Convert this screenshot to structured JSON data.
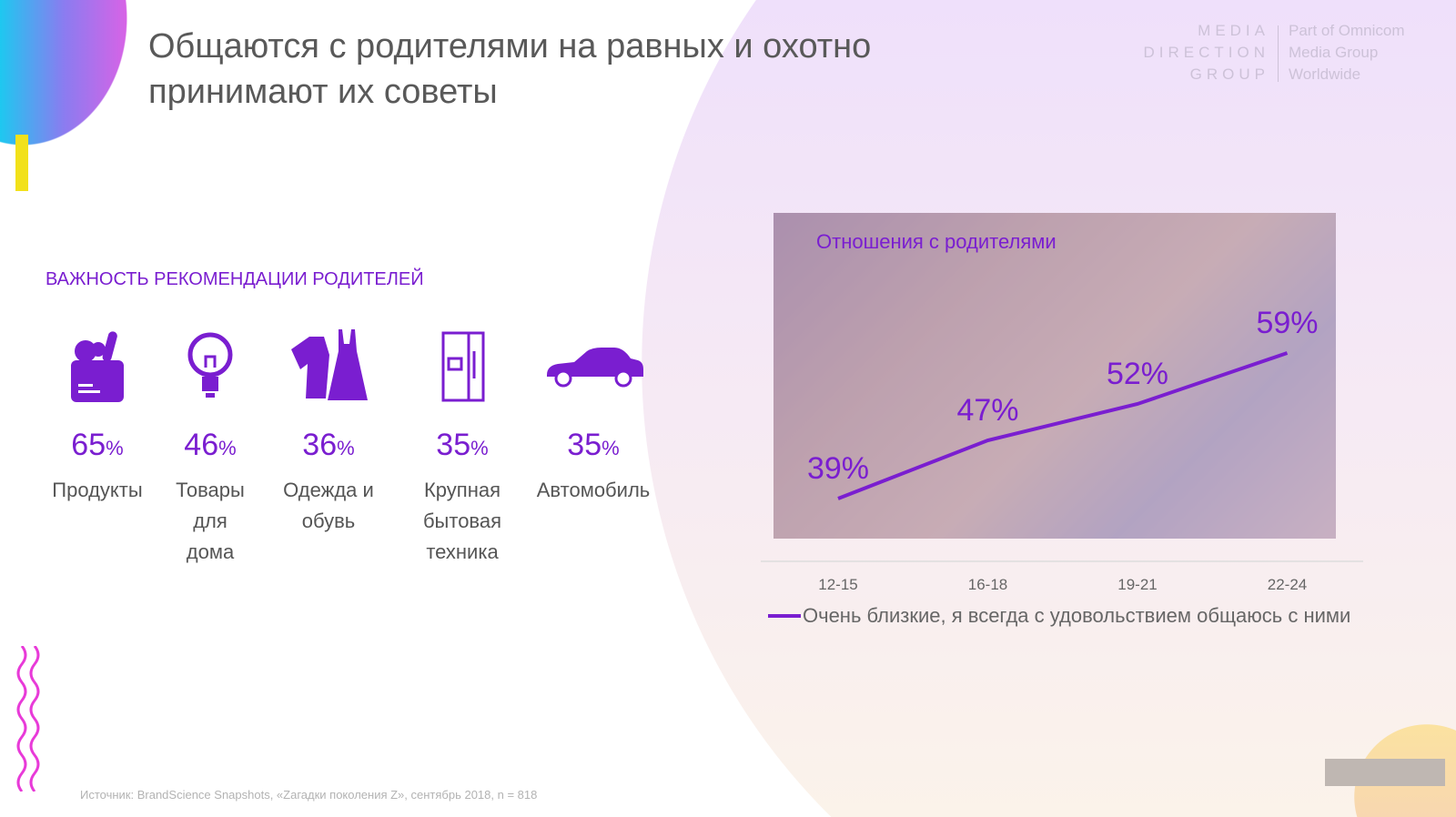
{
  "title": "Общаются с родителями на равных и охотно принимают их советы",
  "logo": {
    "left": [
      "MEDIA",
      "DIRECTION",
      "GROUP"
    ],
    "right": [
      "Part of Omnicom",
      "Media Group",
      "Worldwide"
    ]
  },
  "section_title": "ВАЖНОСТЬ РЕКОМЕНДАЦИИ РОДИТЕЛЕЙ",
  "categories": [
    {
      "icon": "grocery-bag-icon",
      "value": "65",
      "unit": "%",
      "label": "Продукты"
    },
    {
      "icon": "lightbulb-icon",
      "value": "46",
      "unit": "%",
      "label": "Товары для дома"
    },
    {
      "icon": "clothes-icon",
      "value": "36",
      "unit": "%",
      "label": "Одежда и обувь"
    },
    {
      "icon": "fridge-icon",
      "value": "35",
      "unit": "%",
      "label": "Крупная бытовая техника"
    },
    {
      "icon": "car-icon",
      "value": "35",
      "unit": "%",
      "label": "Автомобиль"
    }
  ],
  "accent": "#7a1ed0",
  "chart_data": {
    "type": "line",
    "title": "Отношения с родителями",
    "categories": [
      "12-15",
      "16-18",
      "19-21",
      "22-24"
    ],
    "series": [
      {
        "name": "Очень близкие, я всегда с удовольствием общаюсь с ними",
        "values": [
          39,
          47,
          52,
          59
        ],
        "labels": [
          "39%",
          "47%",
          "52%",
          "59%"
        ],
        "color": "#7a1ed0"
      }
    ],
    "ylim": [
      0,
      100
    ],
    "grid": false,
    "legend": "bottom"
  },
  "source": "Источник: BrandScience Snapshots, «Zагадки поколения Z», сентябрь 2018, n = 818"
}
